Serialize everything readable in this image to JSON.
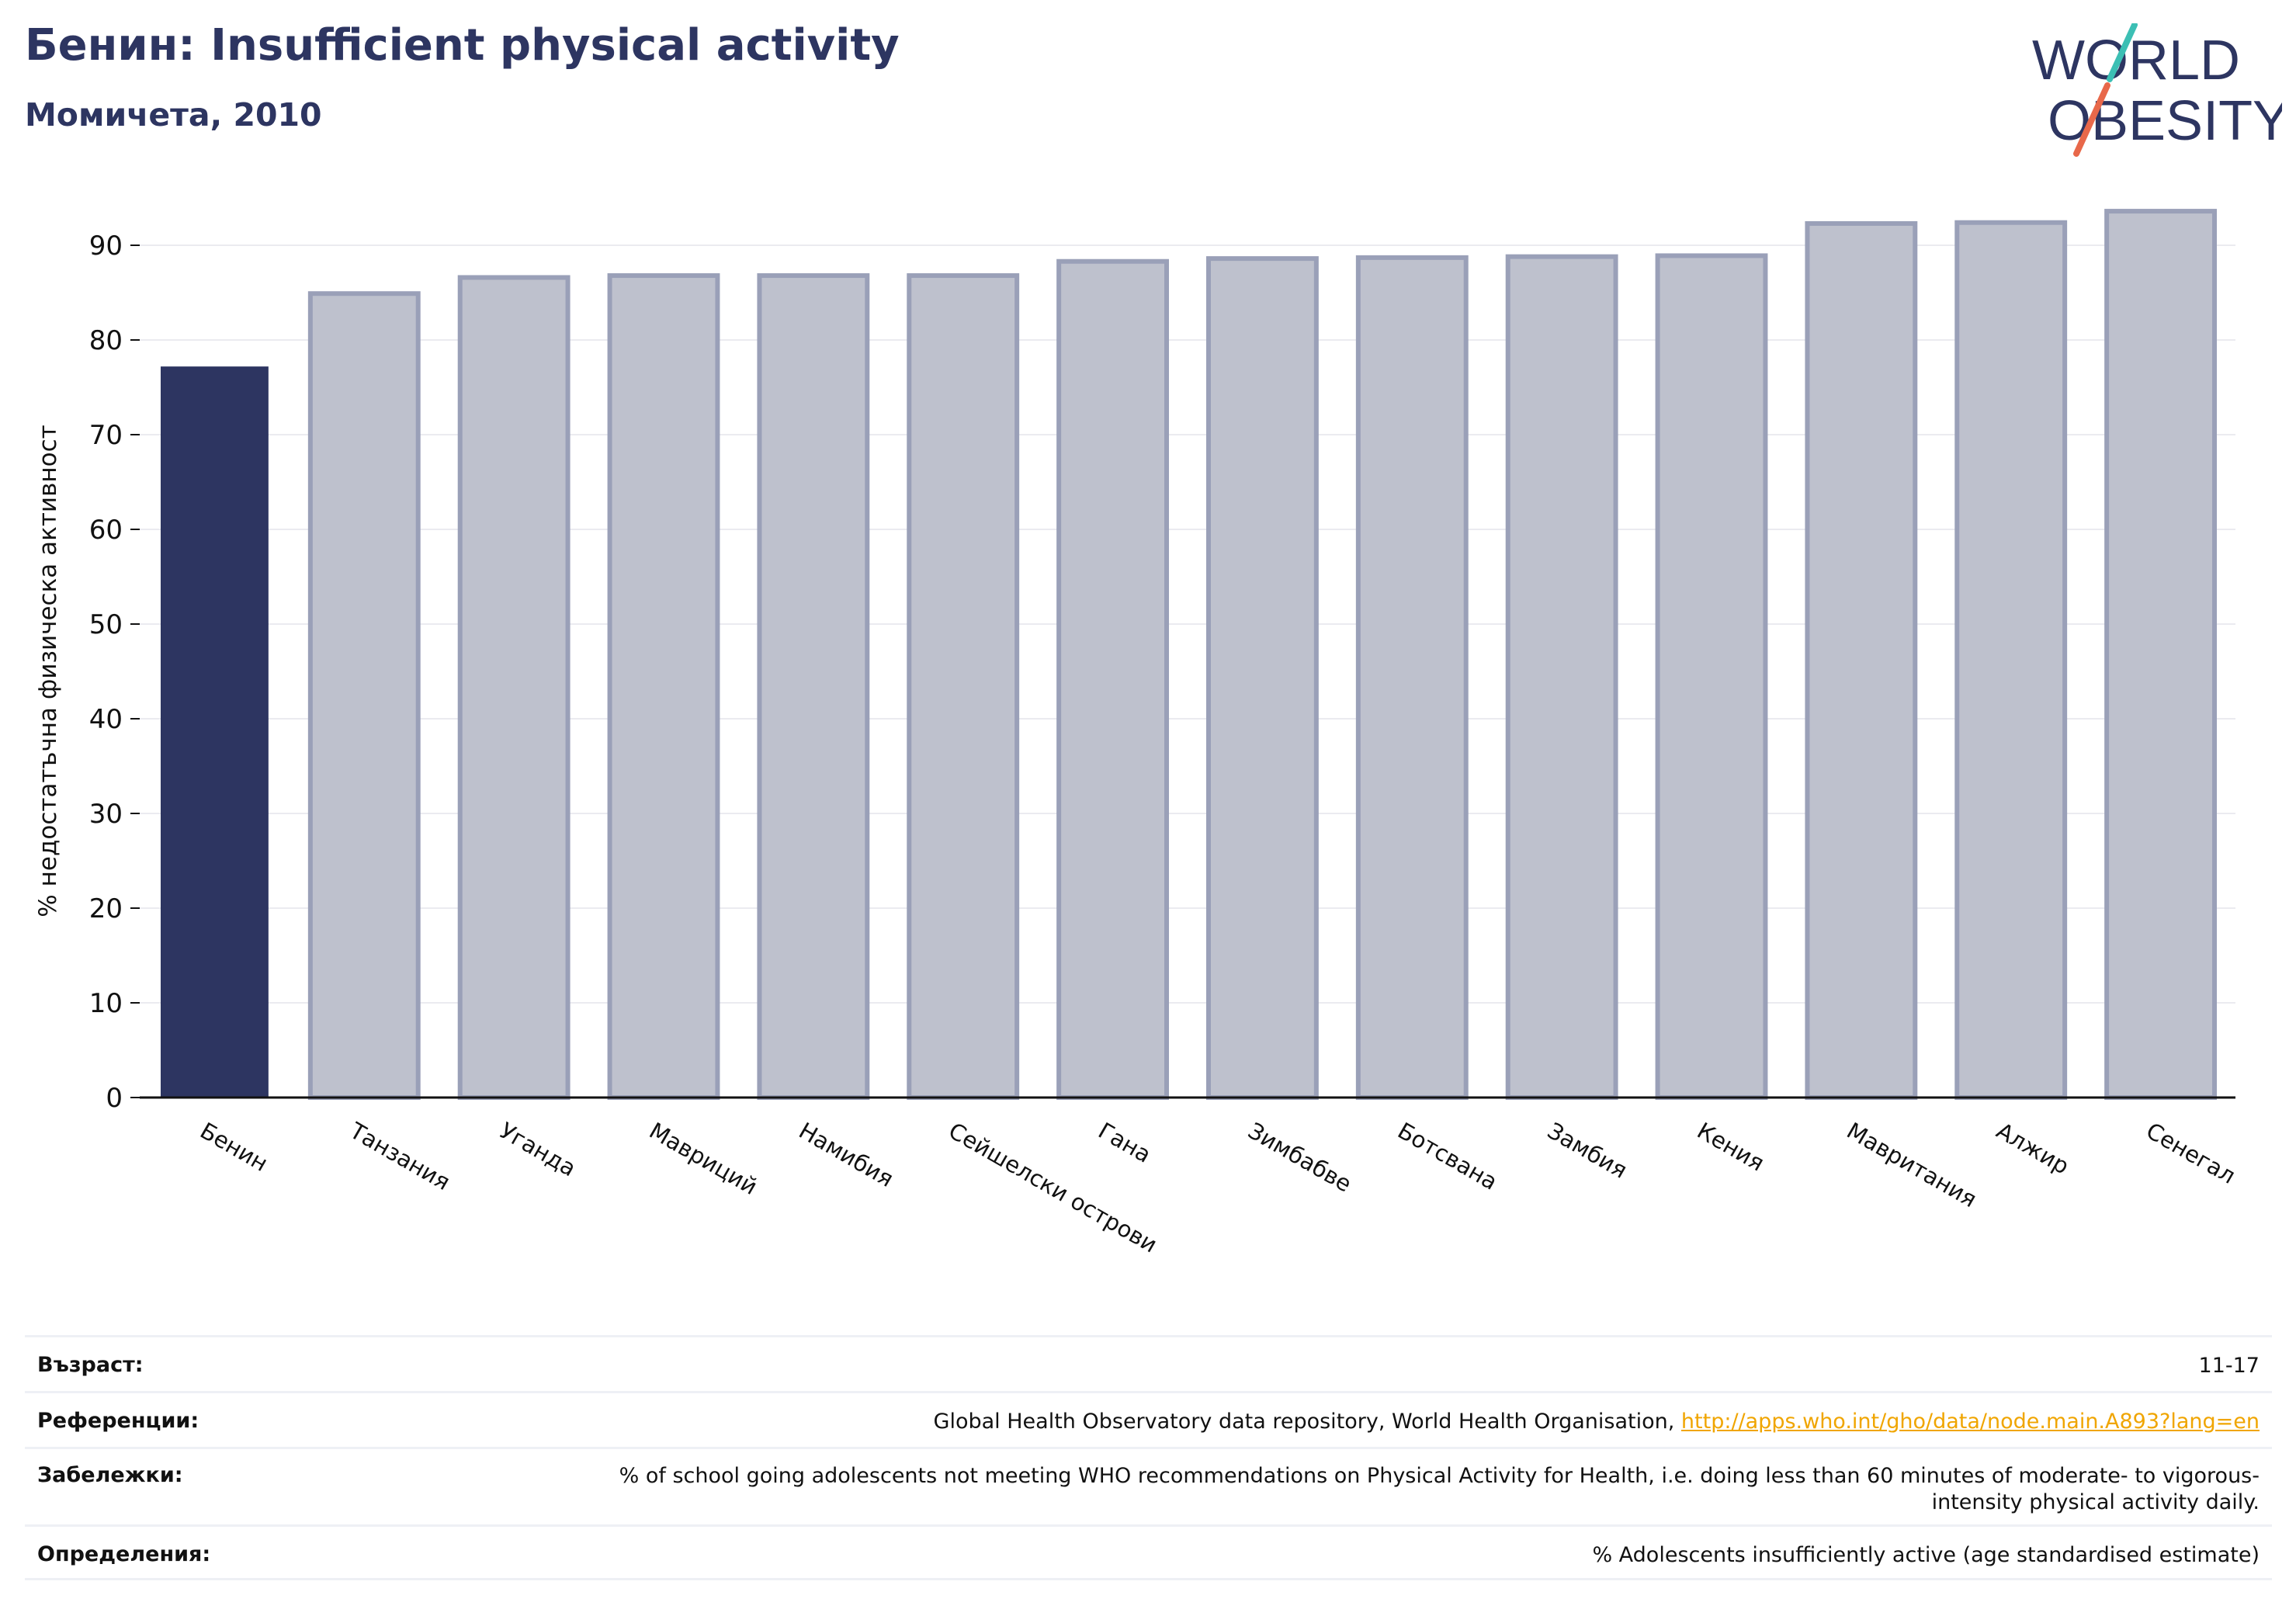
{
  "header": {
    "title": "Бенин: Insufficient physical activity",
    "subtitle": "Момичета, 2010"
  },
  "logo": {
    "line1": "WORLD",
    "line2": "OBESITY"
  },
  "colors": {
    "highlight_bar": "#2d3561",
    "other_bar": "#bec1cd",
    "other_bar_edge": "#9aa0b8",
    "title": "#2d3561",
    "gridline": "#ebebf0",
    "link": "#f0a500",
    "logo_teal": "#3cbfb4",
    "logo_coral": "#e8684a"
  },
  "chart_data": {
    "type": "bar",
    "title": "Бенин: Insufficient physical activity",
    "subtitle": "Момичета, 2010",
    "xlabel": "",
    "ylabel": "% недостатъчна физическа активност",
    "ylim": [
      0,
      95
    ],
    "yticks": [
      0,
      10,
      20,
      30,
      40,
      50,
      60,
      70,
      80,
      90
    ],
    "grid": true,
    "highlight_category": "Бенин",
    "categories": [
      "Бенин",
      "Танзания",
      "Уганда",
      "Мавриций",
      "Намибия",
      "Сейшелски острови",
      "Гана",
      "Зимбабве",
      "Ботсвана",
      "Замбия",
      "Кения",
      "Мавритания",
      "Алжир",
      "Сенегал"
    ],
    "values": [
      77.2,
      84.9,
      86.6,
      86.8,
      86.8,
      86.8,
      88.3,
      88.6,
      88.7,
      88.8,
      88.9,
      92.3,
      92.4,
      93.6
    ]
  },
  "footer": {
    "age_label": "Възраст:",
    "age_value": "11-17",
    "ref_label": "Референции:",
    "ref_text": "Global Health Observatory data repository, World Health Organisation, ",
    "ref_link": "http://apps.who.int/gho/data/node.main.A893?lang=en",
    "notes_label": "Забележки:",
    "notes_value": "% of school going adolescents not meeting WHO recommendations on Physical Activity for Health, i.e. doing less than 60 minutes of moderate- to vigorous-intensity physical activity daily.",
    "defs_label": "Определения:",
    "defs_value": "% Adolescents insufficiently active (age standardised estimate)"
  }
}
